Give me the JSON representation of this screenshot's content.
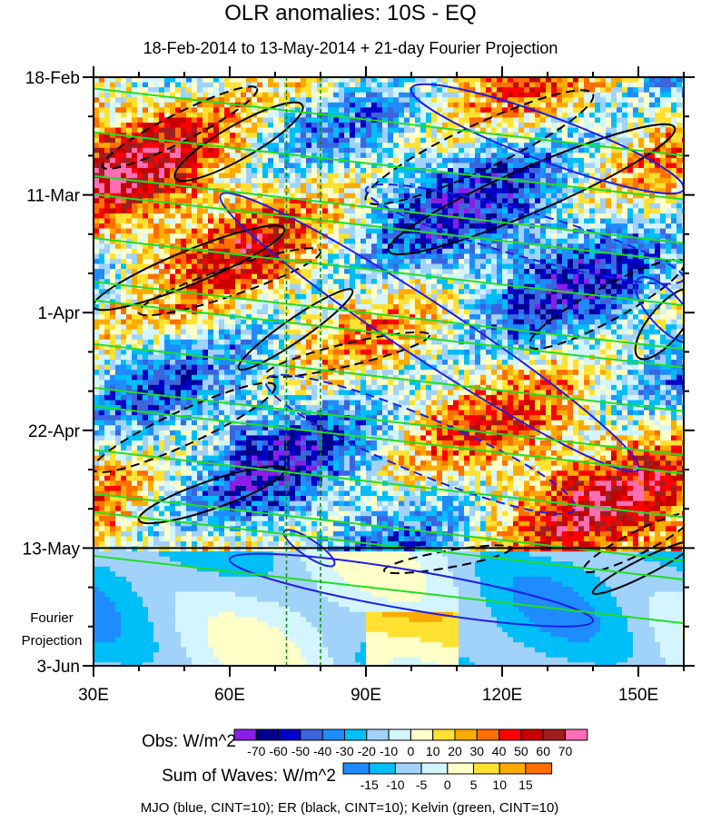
{
  "chart_data": {
    "type": "heatmap",
    "title": "OLR anomalies: 10S - EQ",
    "subtitle": "18-Feb-2014 to 13-May-2014 + 21-day Fourier Projection",
    "x_axis": {
      "range_lon": [
        30,
        160
      ],
      "ticks": [
        30,
        60,
        90,
        120,
        150
      ],
      "tick_labels": [
        "30E",
        "60E",
        "90E",
        "120E",
        "150E"
      ]
    },
    "y_axis": {
      "range_days": [
        0,
        105
      ],
      "reversed": true,
      "ticks_days": [
        0,
        21,
        42,
        63,
        84,
        105
      ],
      "tick_labels": [
        "18-Feb",
        "11-Mar",
        "1-Apr",
        "22-Apr",
        "13-May",
        "3-Jun"
      ]
    },
    "projection_label": [
      "Fourier",
      "Projection"
    ],
    "projection_start_day": 84,
    "reference_lons": [
      72.5,
      80
    ],
    "obs_colorbar": {
      "label": "Obs: W/m^2",
      "levels": [
        -70,
        -60,
        -50,
        -40,
        -30,
        -20,
        -10,
        0,
        10,
        20,
        30,
        40,
        50,
        60,
        70
      ],
      "colors": [
        "#8a1ee8",
        "#00008c",
        "#0000c8",
        "#3c64dc",
        "#1e8cff",
        "#00bef8",
        "#a0d2fa",
        "#d2f5ff",
        "#ffffc8",
        "#ffe132",
        "#ffaa00",
        "#ff6e00",
        "#ff0000",
        "#c80000",
        "#a01e1e",
        "#ff6eb4"
      ]
    },
    "waves_colorbar": {
      "label": "Sum of Waves: W/m^2",
      "levels": [
        -15,
        -10,
        -5,
        0,
        5,
        10,
        15
      ],
      "colors": [
        "#1e8cff",
        "#00bef8",
        "#a0d2fa",
        "#d2f5ff",
        "#ffffc8",
        "#ffe132",
        "#ffaa00",
        "#ff6e00"
      ]
    },
    "contour_note": "MJO (blue, CINT=10); ER (black, CINT=10); Kelvin (green, CINT=10)",
    "contours": [
      {
        "wave": "ER",
        "color": "#000000",
        "dashed": true,
        "from": [
          32,
          16
        ],
        "to": [
          66,
          2
        ],
        "halfwidth_days": 2.5
      },
      {
        "wave": "ER",
        "color": "#000000",
        "dashed": false,
        "from": [
          48,
          18
        ],
        "to": [
          76,
          5
        ],
        "halfwidth_days": 3
      },
      {
        "wave": "ER",
        "color": "#000000",
        "dashed": true,
        "from": [
          90,
          22
        ],
        "to": [
          140,
          3
        ],
        "halfwidth_days": 4
      },
      {
        "wave": "ER",
        "color": "#000000",
        "dashed": false,
        "from": [
          95,
          31
        ],
        "to": [
          158,
          9
        ],
        "halfwidth_days": 4
      },
      {
        "wave": "ER",
        "color": "#000000",
        "dashed": false,
        "from": [
          30,
          41
        ],
        "to": [
          72,
          27
        ],
        "halfwidth_days": 3
      },
      {
        "wave": "ER",
        "color": "#000000",
        "dashed": true,
        "from": [
          40,
          42
        ],
        "to": [
          80,
          31
        ],
        "halfwidth_days": 2.5
      },
      {
        "wave": "ER",
        "color": "#000000",
        "dashed": false,
        "from": [
          62,
          52
        ],
        "to": [
          87,
          38
        ],
        "halfwidth_days": 2
      },
      {
        "wave": "ER",
        "color": "#000000",
        "dashed": true,
        "from": [
          68,
          53
        ],
        "to": [
          104,
          46
        ],
        "halfwidth_days": 2
      },
      {
        "wave": "ER",
        "color": "#000000",
        "dashed": true,
        "from": [
          30,
          70
        ],
        "to": [
          70,
          55
        ],
        "halfwidth_days": 3
      },
      {
        "wave": "ER",
        "color": "#000000",
        "dashed": false,
        "from": [
          40,
          79
        ],
        "to": [
          72,
          70
        ],
        "halfwidth_days": 2.5
      },
      {
        "wave": "ER",
        "color": "#000000",
        "dashed": true,
        "from": [
          126,
          48
        ],
        "to": [
          160,
          33
        ],
        "halfwidth_days": 3
      },
      {
        "wave": "ER",
        "color": "#000000",
        "dashed": false,
        "from": [
          150,
          50
        ],
        "to": [
          162,
          38
        ],
        "halfwidth_days": 3
      },
      {
        "wave": "ER",
        "color": "#000000",
        "dashed": true,
        "from": [
          94,
          88
        ],
        "to": [
          122,
          84
        ],
        "halfwidth_days": 1.5
      },
      {
        "wave": "ER",
        "color": "#000000",
        "dashed": true,
        "from": [
          138,
          88
        ],
        "to": [
          162,
          78
        ],
        "halfwidth_days": 2
      },
      {
        "wave": "ER",
        "color": "#000000",
        "dashed": false,
        "from": [
          140,
          92
        ],
        "to": [
          162,
          83
        ],
        "halfwidth_days": 1.5
      },
      {
        "wave": "MJO",
        "color": "#1e1ee6",
        "dashed": false,
        "from": [
          58,
          21
        ],
        "to": [
          150,
          70
        ],
        "halfwidth_days": 5
      },
      {
        "wave": "MJO",
        "color": "#1e1ee6",
        "dashed": true,
        "from": [
          90,
          20
        ],
        "to": [
          160,
          36
        ],
        "halfwidth_days": 4
      },
      {
        "wave": "MJO",
        "color": "#1e1ee6",
        "dashed": true,
        "from": [
          68,
          54
        ],
        "to": [
          136,
          77
        ],
        "halfwidth_days": 5
      },
      {
        "wave": "MJO",
        "color": "#1e1ee6",
        "dashed": false,
        "from": [
          100,
          2
        ],
        "to": [
          160,
          20
        ],
        "halfwidth_days": 4
      },
      {
        "wave": "MJO",
        "color": "#1e1ee6",
        "dashed": false,
        "from": [
          60,
          86
        ],
        "to": [
          140,
          97
        ],
        "halfwidth_days": 3.5
      },
      {
        "wave": "MJO",
        "color": "#1e1ee6",
        "dashed": false,
        "from": [
          150,
          36
        ],
        "to": [
          162,
          47
        ],
        "halfwidth_days": 3
      },
      {
        "wave": "MJO",
        "color": "#1e1ee6",
        "dashed": false,
        "from": [
          72,
          81
        ],
        "to": [
          83,
          87
        ],
        "halfwidth_days": 1.5
      }
    ]
  }
}
